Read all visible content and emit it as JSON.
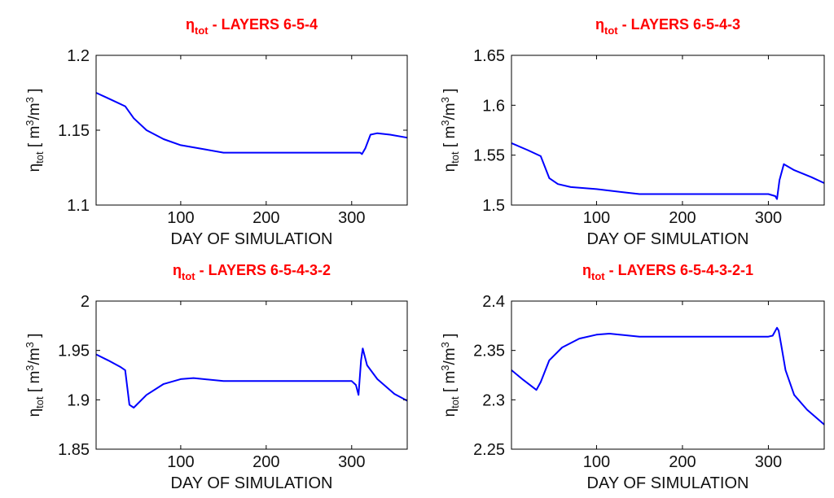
{
  "chart_data": [
    {
      "type": "line",
      "title": {
        "symbol": "η",
        "subscript": "tot",
        "text": " - LAYERS 6-5-4"
      },
      "xlabel": "DAY OF SIMULATION",
      "ylabel": {
        "symbol": "η",
        "subscript": "tot",
        "units_prefix": "[ m",
        "exp1": "3",
        "units_mid": "/m",
        "exp2": "3",
        "units_suffix": " ]"
      },
      "xlim": [
        1,
        365
      ],
      "ylim": [
        1.1,
        1.2
      ],
      "xticks": [
        100,
        200,
        300
      ],
      "xtick_labels": [
        "100",
        "200",
        "300"
      ],
      "yticks": [
        1.1,
        1.15,
        1.2
      ],
      "ytick_labels": [
        "1.1",
        "1.15",
        "1.2"
      ],
      "series": [
        {
          "name": "eta_tot",
          "color": "#0000ff",
          "x": [
            1,
            20,
            35,
            45,
            60,
            80,
            100,
            130,
            150,
            200,
            250,
            300,
            310,
            312,
            316,
            322,
            330,
            345,
            365
          ],
          "y": [
            1.175,
            1.17,
            1.166,
            1.158,
            1.15,
            1.144,
            1.14,
            1.137,
            1.135,
            1.135,
            1.135,
            1.135,
            1.135,
            1.134,
            1.138,
            1.147,
            1.148,
            1.147,
            1.145
          ]
        }
      ]
    },
    {
      "type": "line",
      "title": {
        "symbol": "η",
        "subscript": "tot",
        "text": " - LAYERS 6-5-4-3"
      },
      "xlabel": "DAY OF SIMULATION",
      "ylabel": {
        "symbol": "η",
        "subscript": "tot",
        "units_prefix": "[ m",
        "exp1": "3",
        "units_mid": "/m",
        "exp2": "3",
        "units_suffix": " ]"
      },
      "xlim": [
        1,
        365
      ],
      "ylim": [
        1.5,
        1.65
      ],
      "xticks": [
        100,
        200,
        300
      ],
      "xtick_labels": [
        "100",
        "200",
        "300"
      ],
      "yticks": [
        1.5,
        1.55,
        1.6,
        1.65
      ],
      "ytick_labels": [
        "1.5",
        "1.55",
        "1.6",
        "1.65"
      ],
      "series": [
        {
          "name": "eta_tot",
          "color": "#0000ff",
          "x": [
            1,
            20,
            35,
            45,
            55,
            70,
            100,
            130,
            150,
            200,
            250,
            300,
            308,
            310,
            313,
            318,
            330,
            350,
            365
          ],
          "y": [
            1.562,
            1.555,
            1.549,
            1.527,
            1.521,
            1.518,
            1.516,
            1.513,
            1.511,
            1.511,
            1.511,
            1.511,
            1.509,
            1.506,
            1.525,
            1.541,
            1.535,
            1.528,
            1.522
          ]
        }
      ]
    },
    {
      "type": "line",
      "title": {
        "symbol": "η",
        "subscript": "tot",
        "text": " - LAYERS 6-5-4-3-2"
      },
      "xlabel": "DAY OF SIMULATION",
      "ylabel": {
        "symbol": "η",
        "subscript": "tot",
        "units_prefix": "[ m",
        "exp1": "3",
        "units_mid": "/m",
        "exp2": "3",
        "units_suffix": " ]"
      },
      "xlim": [
        1,
        365
      ],
      "ylim": [
        1.85,
        2.0
      ],
      "xticks": [
        100,
        200,
        300
      ],
      "xtick_labels": [
        "100",
        "200",
        "300"
      ],
      "yticks": [
        1.85,
        1.9,
        1.95,
        2.0
      ],
      "ytick_labels": [
        "1.85",
        "1.9",
        "1.95",
        "2"
      ],
      "series": [
        {
          "name": "eta_tot",
          "color": "#0000ff",
          "x": [
            1,
            15,
            30,
            35,
            40,
            45,
            60,
            80,
            100,
            115,
            150,
            200,
            250,
            300,
            305,
            308,
            311,
            313,
            318,
            330,
            350,
            365
          ],
          "y": [
            1.946,
            1.94,
            1.933,
            1.93,
            1.895,
            1.892,
            1.905,
            1.916,
            1.921,
            1.922,
            1.919,
            1.919,
            1.919,
            1.919,
            1.915,
            1.905,
            1.94,
            1.952,
            1.935,
            1.921,
            1.906,
            1.899
          ]
        }
      ]
    },
    {
      "type": "line",
      "title": {
        "symbol": "η",
        "subscript": "tot",
        "text": " - LAYERS 6-5-4-3-2-1"
      },
      "xlabel": "DAY OF SIMULATION",
      "ylabel": {
        "symbol": "η",
        "subscript": "tot",
        "units_prefix": "[ m",
        "exp1": "3",
        "units_mid": "/m",
        "exp2": "3",
        "units_suffix": " ]"
      },
      "xlim": [
        1,
        365
      ],
      "ylim": [
        2.25,
        2.4
      ],
      "xticks": [
        100,
        200,
        300
      ],
      "xtick_labels": [
        "100",
        "200",
        "300"
      ],
      "yticks": [
        2.25,
        2.3,
        2.35,
        2.4
      ],
      "ytick_labels": [
        "2.25",
        "2.3",
        "2.35",
        "2.4"
      ],
      "series": [
        {
          "name": "eta_tot",
          "color": "#0000ff",
          "x": [
            1,
            15,
            30,
            35,
            45,
            60,
            80,
            100,
            115,
            150,
            200,
            250,
            300,
            305,
            310,
            312,
            315,
            320,
            330,
            345,
            365
          ],
          "y": [
            2.33,
            2.32,
            2.31,
            2.318,
            2.34,
            2.353,
            2.362,
            2.366,
            2.367,
            2.364,
            2.364,
            2.364,
            2.364,
            2.365,
            2.373,
            2.37,
            2.355,
            2.33,
            2.305,
            2.29,
            2.275
          ]
        }
      ]
    }
  ]
}
